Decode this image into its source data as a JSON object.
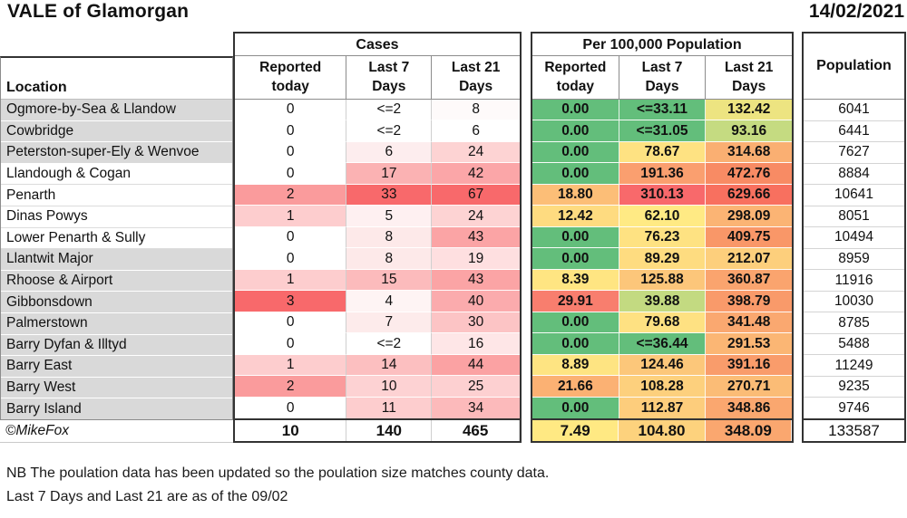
{
  "colors": {
    "row_shading": "#D9D9D9",
    "scale_green": "#63BE7B",
    "scale_yellow": "#FFEB84",
    "scale_red": "#F8696B",
    "border_dark": "#333333"
  },
  "chart_data": {
    "type": "table",
    "title": "VALE of Glamorgan",
    "date": "14/02/2021",
    "location_header": "Location",
    "groups": {
      "cases": {
        "label": "Cases",
        "columns": [
          "Reported\ntoday",
          "Last 7\nDays",
          "Last 21\nDays"
        ]
      },
      "per100k": {
        "label": "Per 100,000 Population",
        "columns": [
          "Reported\ntoday",
          "Last 7\nDays",
          "Last 21\nDays"
        ]
      },
      "population": {
        "label": "Population"
      }
    },
    "rows": [
      {
        "location": "Ogmore-by-Sea & Llandow",
        "shaded": true,
        "cases": [
          {
            "v": "0",
            "bg": "#FFFFFF"
          },
          {
            "v": "<=2",
            "bg": "#FFFFFF"
          },
          {
            "v": "8",
            "bg": "#FEFAFA"
          }
        ],
        "per100k": [
          {
            "v": "0.00",
            "bg": "#63BE7B"
          },
          {
            "v": "<=33.11",
            "bg": "#63BE7B"
          },
          {
            "v": "132.42",
            "bg": "#EDE481"
          }
        ],
        "population": "6041"
      },
      {
        "location": "Cowbridge",
        "shaded": true,
        "cases": [
          {
            "v": "0",
            "bg": "#FFFFFF"
          },
          {
            "v": "<=2",
            "bg": "#FFFFFF"
          },
          {
            "v": "6",
            "bg": "#FFFFFF"
          }
        ],
        "per100k": [
          {
            "v": "0.00",
            "bg": "#63BE7B"
          },
          {
            "v": "<=31.05",
            "bg": "#63BE7B"
          },
          {
            "v": "93.16",
            "bg": "#C5DB81"
          }
        ],
        "population": "6441"
      },
      {
        "location": "Peterston-super-Ely & Wenvoe",
        "shaded": true,
        "cases": [
          {
            "v": "0",
            "bg": "#FFFFFF"
          },
          {
            "v": "6",
            "bg": "#FDEDEE"
          },
          {
            "v": "24",
            "bg": "#FDD3D3"
          }
        ],
        "per100k": [
          {
            "v": "0.00",
            "bg": "#63BE7B"
          },
          {
            "v": "78.67",
            "bg": "#FEE282"
          },
          {
            "v": "314.68",
            "bg": "#FAAF72"
          }
        ],
        "population": "7627"
      },
      {
        "location": "Llandough & Cogan",
        "shaded": false,
        "cases": [
          {
            "v": "0",
            "bg": "#FFFFFF"
          },
          {
            "v": "17",
            "bg": "#FBB2B3"
          },
          {
            "v": "42",
            "bg": "#FBA6A8"
          }
        ],
        "per100k": [
          {
            "v": "0.00",
            "bg": "#63BE7B"
          },
          {
            "v": "191.36",
            "bg": "#FA9F6F"
          },
          {
            "v": "472.76",
            "bg": "#F88B64"
          }
        ],
        "population": "8884"
      },
      {
        "location": "Penarth",
        "shaded": false,
        "cases": [
          {
            "v": "2",
            "bg": "#FA9B9C"
          },
          {
            "v": "33",
            "bg": "#F8696B"
          },
          {
            "v": "67",
            "bg": "#F8696B"
          }
        ],
        "per100k": [
          {
            "v": "18.80",
            "bg": "#FCBE77"
          },
          {
            "v": "310.13",
            "bg": "#F8696B"
          },
          {
            "v": "629.66",
            "bg": "#F8705F"
          }
        ],
        "population": "10641"
      },
      {
        "location": "Dinas Powys",
        "shaded": false,
        "cases": [
          {
            "v": "1",
            "bg": "#FDCDCE"
          },
          {
            "v": "5",
            "bg": "#FEF0F1"
          },
          {
            "v": "24",
            "bg": "#FDD3D3"
          }
        ],
        "per100k": [
          {
            "v": "12.42",
            "bg": "#FEDB80"
          },
          {
            "v": "62.10",
            "bg": "#FFEA84"
          },
          {
            "v": "298.09",
            "bg": "#FBB474"
          }
        ],
        "population": "8051"
      },
      {
        "location": "Lower Penarth & Sully",
        "shaded": false,
        "cases": [
          {
            "v": "0",
            "bg": "#FFFFFF"
          },
          {
            "v": "8",
            "bg": "#FDE9E9"
          },
          {
            "v": "43",
            "bg": "#FBA4A5"
          }
        ],
        "per100k": [
          {
            "v": "0.00",
            "bg": "#63BE7B"
          },
          {
            "v": "76.23",
            "bg": "#FEE282"
          },
          {
            "v": "409.75",
            "bg": "#F99768"
          }
        ],
        "population": "10494"
      },
      {
        "location": "Llantwit Major",
        "shaded": true,
        "cases": [
          {
            "v": "0",
            "bg": "#FFFFFF"
          },
          {
            "v": "8",
            "bg": "#FDE9E9"
          },
          {
            "v": "19",
            "bg": "#FEDFE0"
          }
        ],
        "per100k": [
          {
            "v": "0.00",
            "bg": "#63BE7B"
          },
          {
            "v": "89.29",
            "bg": "#FEDC80"
          },
          {
            "v": "212.07",
            "bg": "#FDCF7C"
          }
        ],
        "population": "8959"
      },
      {
        "location": "Rhoose & Airport",
        "shaded": true,
        "cases": [
          {
            "v": "1",
            "bg": "#FDCDCE"
          },
          {
            "v": "15",
            "bg": "#FCBBBC"
          },
          {
            "v": "43",
            "bg": "#FBA4A5"
          }
        ],
        "per100k": [
          {
            "v": "8.39",
            "bg": "#FFE582"
          },
          {
            "v": "125.88",
            "bg": "#FCC67A"
          },
          {
            "v": "360.87",
            "bg": "#FAA46E"
          }
        ],
        "population": "11916"
      },
      {
        "location": "Gibbonsdown",
        "shaded": true,
        "cases": [
          {
            "v": "3",
            "bg": "#F8696B"
          },
          {
            "v": "4",
            "bg": "#FEF4F4"
          },
          {
            "v": "40",
            "bg": "#FBABAD"
          }
        ],
        "per100k": [
          {
            "v": "29.91",
            "bg": "#F87E6E"
          },
          {
            "v": "39.88",
            "bg": "#C3DA81"
          },
          {
            "v": "398.79",
            "bg": "#F99A6A"
          }
        ],
        "population": "10030"
      },
      {
        "location": "Palmerstown",
        "shaded": true,
        "cases": [
          {
            "v": "0",
            "bg": "#FFFFFF"
          },
          {
            "v": "7",
            "bg": "#FDEBEB"
          },
          {
            "v": "30",
            "bg": "#FCC4C5"
          }
        ],
        "per100k": [
          {
            "v": "0.00",
            "bg": "#63BE7B"
          },
          {
            "v": "79.68",
            "bg": "#FEE182"
          },
          {
            "v": "341.48",
            "bg": "#FAA870"
          }
        ],
        "population": "8785"
      },
      {
        "location": "Barry Dyfan & Illtyd",
        "shaded": true,
        "cases": [
          {
            "v": "0",
            "bg": "#FFFFFF"
          },
          {
            "v": "<=2",
            "bg": "#FFFFFF"
          },
          {
            "v": "16",
            "bg": "#FEE6E7"
          }
        ],
        "per100k": [
          {
            "v": "0.00",
            "bg": "#63BE7B"
          },
          {
            "v": "<=36.44",
            "bg": "#63BE7B"
          },
          {
            "v": "291.53",
            "bg": "#FBB674"
          }
        ],
        "population": "5488"
      },
      {
        "location": "Barry East",
        "shaded": true,
        "cases": [
          {
            "v": "1",
            "bg": "#FDCDCE"
          },
          {
            "v": "14",
            "bg": "#FCBFC0"
          },
          {
            "v": "44",
            "bg": "#FBA2A3"
          }
        ],
        "per100k": [
          {
            "v": "8.89",
            "bg": "#FEE482"
          },
          {
            "v": "124.46",
            "bg": "#FCC77A"
          },
          {
            "v": "391.16",
            "bg": "#F99C6B"
          }
        ],
        "population": "11249"
      },
      {
        "location": "Barry West",
        "shaded": true,
        "cases": [
          {
            "v": "2",
            "bg": "#FA9B9C"
          },
          {
            "v": "10",
            "bg": "#FDD2D3"
          },
          {
            "v": "25",
            "bg": "#FDD0D1"
          }
        ],
        "per100k": [
          {
            "v": "21.66",
            "bg": "#FBB173"
          },
          {
            "v": "108.28",
            "bg": "#FDD07D"
          },
          {
            "v": "270.71",
            "bg": "#FBBC76"
          }
        ],
        "population": "9235"
      },
      {
        "location": "Barry Island",
        "shaded": true,
        "cases": [
          {
            "v": "0",
            "bg": "#FFFFFF"
          },
          {
            "v": "11",
            "bg": "#FDCDCE"
          },
          {
            "v": "34",
            "bg": "#FCBABB"
          }
        ],
        "per100k": [
          {
            "v": "0.00",
            "bg": "#63BE7B"
          },
          {
            "v": "112.87",
            "bg": "#FDCD7C"
          },
          {
            "v": "348.86",
            "bg": "#FAA76F"
          }
        ],
        "population": "9746"
      }
    ],
    "totals": {
      "label": "©MikeFox",
      "cases": [
        {
          "v": "10",
          "bg": "#FFFFFF"
        },
        {
          "v": "140",
          "bg": "#FFFFFF"
        },
        {
          "v": "465",
          "bg": "#FFFFFF"
        }
      ],
      "per100k": [
        {
          "v": "7.49",
          "bg": "#FFE983"
        },
        {
          "v": "104.80",
          "bg": "#FDD27D"
        },
        {
          "v": "348.09",
          "bg": "#FAA76F"
        }
      ],
      "population": "133587"
    },
    "notes": [
      "NB The poulation data has been updated so the poulation size matches county data.",
      "Last 7 Days and Last 21 are as of the 09/02"
    ]
  }
}
